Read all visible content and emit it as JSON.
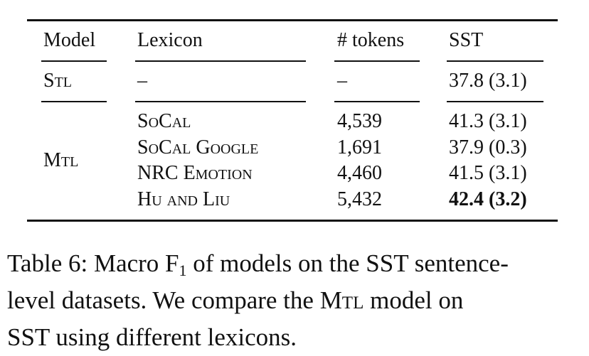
{
  "table": {
    "headers": {
      "model": "Model",
      "lexicon": "Lexicon",
      "tokens": "# tokens",
      "sst": "SST"
    },
    "stl": {
      "model": "Stl",
      "lexicon": "–",
      "tokens": "–",
      "sst": "37.8 (3.1)"
    },
    "mtl": {
      "model": "Mtl",
      "rows": [
        {
          "lexicon": "SoCal",
          "tokens": "4,539",
          "sst": "41.3 (3.1)"
        },
        {
          "lexicon": "SoCal Google",
          "tokens": "1,691",
          "sst": "37.9 (0.3)"
        },
        {
          "lexicon": "NRC Emotion",
          "tokens": "4,460",
          "sst": "41.5 (3.1)"
        },
        {
          "lexicon": "Hu and Liu",
          "tokens": "5,432",
          "sst": "42.4 (3.2)",
          "bold_sst": true
        }
      ]
    }
  },
  "caption": {
    "label": "Table 6:",
    "text_a": "Macro F",
    "subscript": "1",
    "text_b": "of models on the SST sentence-",
    "line2_a": "level datasets.  We compare the",
    "line2_model": "Mtl",
    "line2_b": "model on",
    "line3": "SST using different lexicons."
  }
}
